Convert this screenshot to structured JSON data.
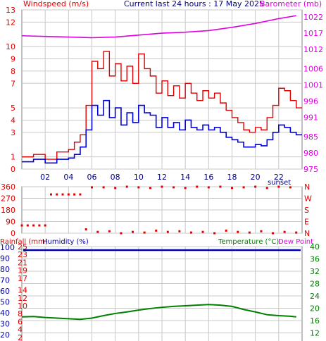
{
  "header": {
    "left_label": "Windspeed (m/s)",
    "center_label": "Current last 24 hours : 17 May 2025",
    "right_label": "Barometer (mb)",
    "sunset_label": "sunset"
  },
  "panel3": {
    "left_label_a": "Rainfall (mm)",
    "left_label_b": "Humidity (%)",
    "right_label_a": "Temperature (°C)",
    "right_label_b": "Dew Point"
  },
  "colors": {
    "wind_gust": "#e00000",
    "wind_avg": "#0000dd",
    "barometer": "#e000e0",
    "wind_dir": "#e00000",
    "humidity": "#0000aa",
    "temperature": "#008000",
    "rain": "#ff0000",
    "grid": "#c8c8c8",
    "frame": "#808080"
  },
  "chart_data": [
    {
      "type": "line",
      "panel": "wind-barometer",
      "x_ticks": [
        "02",
        "04",
        "06",
        "08",
        "10",
        "12",
        "14",
        "16",
        "18",
        "20",
        "22"
      ],
      "x_range_hours": [
        0,
        24
      ],
      "left_axis": {
        "title": "Windspeed (m/s)",
        "ticks": [
          0,
          1,
          3,
          4,
          5,
          7,
          8,
          9,
          10,
          12,
          13
        ],
        "range": [
          0,
          13
        ]
      },
      "right_axis": {
        "title": "Barometer (mb)",
        "ticks": [
          975,
          980,
          985,
          991,
          996,
          1001,
          1006,
          1012,
          1017,
          1022
        ],
        "range": [
          975,
          1024.2
        ]
      },
      "series": [
        {
          "name": "Windspeed (m/s)",
          "role": "gust",
          "x": [
            0,
            1,
            2,
            3,
            4,
            4.5,
            5,
            5.5,
            6,
            6.5,
            7,
            7.5,
            8,
            8.5,
            9,
            9.5,
            10,
            10.5,
            11,
            11.5,
            12,
            12.5,
            13,
            13.5,
            14,
            14.5,
            15,
            15.5,
            16,
            16.5,
            17,
            17.5,
            18,
            18.5,
            19,
            19.5,
            20,
            20.5,
            21,
            21.5,
            22,
            22.5,
            23,
            23.5
          ],
          "values": [
            1,
            1.2,
            0.8,
            1.4,
            1.6,
            2.2,
            2.8,
            5.2,
            8.8,
            8.2,
            9.6,
            7.6,
            8.6,
            7.2,
            8.4,
            7.0,
            9.4,
            8.2,
            7.6,
            6.2,
            7.2,
            6.0,
            6.8,
            5.8,
            7.0,
            6.2,
            5.6,
            6.4,
            5.8,
            6.2,
            5.4,
            4.8,
            4.2,
            3.8,
            3.2,
            3.0,
            3.4,
            3.2,
            4.2,
            5.2,
            6.6,
            6.4,
            5.6,
            5.0
          ]
        },
        {
          "name": "Windspeed (m/s)",
          "role": "average",
          "x": [
            0,
            1,
            2,
            3,
            4,
            4.5,
            5,
            5.5,
            6,
            6.5,
            7,
            7.5,
            8,
            8.5,
            9,
            9.5,
            10,
            10.5,
            11,
            11.5,
            12,
            12.5,
            13,
            13.5,
            14,
            14.5,
            15,
            15.5,
            16,
            16.5,
            17,
            17.5,
            18,
            18.5,
            19,
            19.5,
            20,
            20.5,
            21,
            21.5,
            22,
            22.5,
            23,
            23.5
          ],
          "values": [
            0.6,
            0.8,
            0.5,
            0.8,
            0.9,
            1.2,
            1.8,
            3.2,
            5.2,
            4.4,
            5.6,
            4.2,
            5.0,
            3.6,
            4.6,
            3.8,
            5.2,
            4.6,
            4.4,
            3.4,
            4.2,
            3.4,
            3.8,
            3.2,
            4.0,
            3.4,
            3.2,
            3.6,
            3.2,
            3.4,
            3.0,
            2.6,
            2.4,
            2.2,
            1.8,
            1.8,
            2.0,
            1.9,
            2.4,
            3.0,
            3.6,
            3.4,
            3.0,
            2.8
          ]
        },
        {
          "name": "Barometer (mb)",
          "x": [
            0,
            2,
            4,
            6,
            8,
            10,
            12,
            14,
            16,
            18,
            20,
            22,
            23.5
          ],
          "values": [
            1016.2,
            1016.0,
            1015.8,
            1015.6,
            1015.8,
            1016.4,
            1017.0,
            1017.3,
            1017.8,
            1018.8,
            1020.0,
            1021.5,
            1022.4
          ]
        }
      ]
    },
    {
      "type": "scatter",
      "panel": "wind-direction",
      "left_axis": {
        "ticks": [
          0,
          90,
          180,
          270,
          360
        ],
        "range": [
          0,
          360
        ]
      },
      "right_axis": {
        "ticks": [
          "N",
          "W",
          "S",
          "E",
          "N"
        ]
      },
      "x_range_hours": [
        0,
        24
      ],
      "series": [
        {
          "name": "Wind direction",
          "x": [
            0,
            0.5,
            1,
            1.5,
            2,
            2.5,
            3,
            3.5,
            4,
            4.5,
            5,
            5.5,
            6,
            6.5,
            7,
            7.5,
            8,
            8.5,
            9,
            9.5,
            10,
            10.5,
            11,
            11.5,
            12,
            12.5,
            13,
            13.5,
            14,
            14.5,
            15,
            15.5,
            16,
            16.5,
            17,
            17.5,
            18,
            18.5,
            19,
            19.5,
            20,
            20.5,
            21,
            21.5,
            22,
            22.5,
            23,
            23.5
          ],
          "values": [
            60,
            60,
            60,
            60,
            60,
            300,
            300,
            300,
            300,
            300,
            300,
            30,
            355,
            10,
            355,
            15,
            350,
            0,
            360,
            10,
            355,
            5,
            350,
            20,
            360,
            10,
            355,
            15,
            350,
            5,
            360,
            10,
            355,
            0,
            360,
            20,
            350,
            10,
            355,
            5,
            360,
            15,
            350,
            0,
            360,
            10,
            355,
            5
          ]
        }
      ]
    },
    {
      "type": "line",
      "panel": "rain-humidity-temperature",
      "x_range_hours": [
        0,
        24
      ],
      "left_axis_rain": {
        "title": "Rainfall (mm)",
        "ticks": [
          0,
          2,
          4,
          6,
          8,
          10,
          12,
          14,
          17,
          19,
          21,
          23,
          25
        ],
        "range": [
          0,
          25
        ]
      },
      "left_axis_humidity": {
        "title": "Humidity (%)",
        "ticks": [
          10,
          20,
          30,
          40,
          50,
          60,
          70,
          80,
          90,
          100
        ]
      },
      "right_axis": {
        "title": "Temperature (°C)",
        "ticks": [
          8,
          12,
          16,
          20,
          24,
          28,
          32,
          36,
          40
        ],
        "range": [
          8,
          40
        ]
      },
      "series": [
        {
          "name": "Humidity (%)",
          "x": [
            0,
            24
          ],
          "values": [
            99,
            99
          ]
        },
        {
          "name": "Temperature (°C)",
          "x": [
            0,
            1,
            2,
            3,
            4,
            5,
            6,
            7,
            8,
            9,
            10,
            11,
            12,
            13,
            14,
            15,
            16,
            17,
            18,
            19,
            20,
            21,
            22,
            23,
            23.5
          ],
          "values": [
            17.2,
            17.3,
            17.0,
            16.8,
            16.6,
            16.4,
            16.8,
            17.6,
            18.3,
            18.8,
            19.4,
            19.9,
            20.3,
            20.6,
            20.8,
            21.0,
            21.2,
            21.0,
            20.6,
            19.6,
            18.8,
            17.9,
            17.6,
            17.4,
            17.2
          ]
        },
        {
          "name": "Rainfall (mm)",
          "x": [
            0,
            24
          ],
          "values": [
            0,
            0
          ]
        }
      ]
    }
  ]
}
